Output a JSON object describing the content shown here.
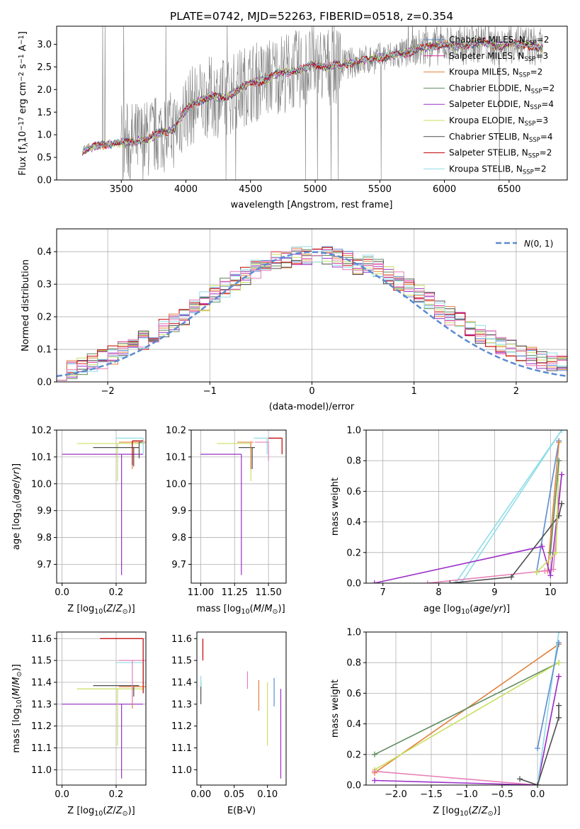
{
  "figure_title": "PLATE=0742, MJD=52263, FIBERID=0518, z=0.354",
  "colors": {
    "miles_chabrier": "#5b8bd0",
    "miles_salpeter": "#d62790",
    "miles_kroupa": "#e0803a",
    "elodie_chabrier": "#5f8a5f",
    "elodie_salpeter": "#9b30c8",
    "elodie_kroupa": "#c8e060",
    "stelib_chabrier": "#4d4d4d",
    "stelib_salpeter": "#c00000",
    "stelib_kroupa": "#90dde8",
    "data": "#808080",
    "gauss": "#5b8bd0",
    "pink": "#e67fb8"
  },
  "chart_data": [
    {
      "id": "spectrum",
      "type": "line",
      "title": "PLATE=0742, MJD=52263, FIBERID=0518, z=0.354",
      "xlabel": "wavelength [Angstrom, rest frame]",
      "ylabel_html": "Flux [fλ10⁻¹⁷ erg cm⁻² s⁻¹ A⁻¹]",
      "xlim": [
        3000,
        6950
      ],
      "ylim": [
        0,
        3.4
      ],
      "xticks": [
        3500,
        4000,
        4500,
        5000,
        5500,
        6000,
        6500
      ],
      "yticks": [
        0.0,
        0.5,
        1.0,
        1.5,
        2.0,
        2.5,
        3.0
      ],
      "legend_position": "right",
      "legend": [
        {
          "name": "Chabrier MILES",
          "nssp": "2",
          "color": "#5b8bd0"
        },
        {
          "name": "Salpeter MILES",
          "nssp": "3",
          "color": "#d62790"
        },
        {
          "name": "Kroupa MILES",
          "nssp": "2",
          "color": "#e0803a"
        },
        {
          "name": "Chabrier ELODIE",
          "nssp": "2",
          "color": "#5f8a5f"
        },
        {
          "name": "Salpeter ELODIE",
          "nssp": "4",
          "color": "#9b30c8"
        },
        {
          "name": "Kroupa ELODIE",
          "nssp": "3",
          "color": "#c8e060"
        },
        {
          "name": "Chabrier STELIB",
          "nssp": "4",
          "color": "#4d4d4d"
        },
        {
          "name": "Salpeter STELIB",
          "nssp": "2",
          "color": "#c00000"
        },
        {
          "name": "Kroupa STELIB",
          "nssp": "2",
          "color": "#90dde8"
        }
      ],
      "continuum": [
        [
          3200,
          0.65
        ],
        [
          3300,
          0.75
        ],
        [
          3400,
          0.8
        ],
        [
          3500,
          0.82
        ],
        [
          3600,
          0.85
        ],
        [
          3700,
          0.9
        ],
        [
          3800,
          1.05
        ],
        [
          3900,
          1.1
        ],
        [
          4000,
          1.55
        ],
        [
          4100,
          1.75
        ],
        [
          4200,
          1.85
        ],
        [
          4300,
          1.8
        ],
        [
          4400,
          2.0
        ],
        [
          4500,
          2.15
        ],
        [
          4600,
          2.2
        ],
        [
          4700,
          2.35
        ],
        [
          4800,
          2.4
        ],
        [
          4900,
          2.45
        ],
        [
          5000,
          2.55
        ],
        [
          5100,
          2.5
        ],
        [
          5200,
          2.55
        ],
        [
          5300,
          2.6
        ],
        [
          5400,
          2.65
        ],
        [
          5500,
          2.7
        ],
        [
          5600,
          2.75
        ],
        [
          5700,
          2.8
        ],
        [
          5800,
          2.9
        ],
        [
          5900,
          2.95
        ],
        [
          6000,
          3.0
        ],
        [
          6100,
          2.95
        ],
        [
          6200,
          3.0
        ],
        [
          6300,
          3.05
        ],
        [
          6400,
          2.95
        ],
        [
          6500,
          3.0
        ],
        [
          6600,
          3.0
        ],
        [
          6700,
          2.95
        ],
        [
          6750,
          2.9
        ]
      ]
    },
    {
      "id": "residuals",
      "type": "line",
      "xlabel": "(data-model)/error",
      "ylabel": "Normed distribution",
      "xlim": [
        -2.5,
        2.5
      ],
      "ylim": [
        0,
        0.47
      ],
      "xticks": [
        -2,
        -1,
        0,
        1,
        2
      ],
      "yticks": [
        0.0,
        0.1,
        0.2,
        0.3,
        0.4
      ],
      "grid": true,
      "legend_position": "top-right",
      "legend": [
        {
          "name": "𝒩(0, 1)",
          "color": "#5b8bd0",
          "style": "dashed"
        }
      ],
      "gaussian": {
        "mean": 0,
        "sigma": 1
      }
    },
    {
      "id": "age_vs_Z",
      "type": "scatter",
      "xlabel_html": "Z [log₁₀(Z/Z⊙)]",
      "ylabel_html": "age  [log₁₀(age/yr)]",
      "xlim": [
        -0.02,
        0.31
      ],
      "ylim": [
        9.63,
        10.2
      ],
      "xticks": [
        0.0,
        0.2
      ],
      "yticks": [
        9.7,
        9.8,
        9.9,
        10.0,
        10.1,
        10.2
      ],
      "grid": true,
      "points": [
        {
          "x": 0.22,
          "y": 10.11,
          "xerr": [
            0.22,
            0.08
          ],
          "yerr": [
            0.45,
            0
          ],
          "color": "#9b30c8"
        },
        {
          "x": 0.205,
          "y": 10.15,
          "xerr": [
            0.15,
            0.1
          ],
          "yerr": [
            0.14,
            0
          ],
          "color": "#c8e060"
        },
        {
          "x": 0.265,
          "y": 10.135,
          "xerr": [
            0.15,
            0.02
          ],
          "yerr": [
            0.07,
            0
          ],
          "color": "#4d4d4d"
        },
        {
          "x": 0.26,
          "y": 10.155,
          "xerr": [
            0.05,
            0.05
          ],
          "yerr": [
            0.1,
            0
          ],
          "color": "#e0803a"
        },
        {
          "x": 0.3,
          "y": 10.17,
          "xerr": [
            0.1,
            0
          ],
          "yerr": [
            0.06,
            0
          ],
          "color": "#90dde8"
        },
        {
          "x": 0.285,
          "y": 10.155,
          "xerr": [
            0.0,
            0.01
          ],
          "yerr": [
            0.06,
            0
          ],
          "color": "#4d4d4d"
        },
        {
          "x": 0.26,
          "y": 10.16,
          "xerr": [
            0.0,
            0.04
          ],
          "yerr": [
            0.09,
            0
          ],
          "color": "#c00000"
        }
      ]
    },
    {
      "id": "age_vs_mass",
      "type": "scatter",
      "xlabel_html": "mass [log₁₀(M/M⊙)]",
      "xlim": [
        10.93,
        11.63
      ],
      "ylim": [
        9.63,
        10.2
      ],
      "xticks": [
        11.0,
        11.25,
        11.5
      ],
      "yticks": [
        9.7,
        9.8,
        9.9,
        10.0,
        10.1,
        10.2
      ],
      "grid": true,
      "points": [
        {
          "x": 11.3,
          "y": 10.11,
          "xerr": [
            0.3,
            0
          ],
          "yerr": [
            0.45,
            0
          ],
          "color": "#9b30c8"
        },
        {
          "x": 11.37,
          "y": 10.15,
          "xerr": [
            0.25,
            0
          ],
          "yerr": [
            0.14,
            0
          ],
          "color": "#c8e060"
        },
        {
          "x": 11.38,
          "y": 10.135,
          "xerr": [
            0.1,
            0.02
          ],
          "yerr": [
            0.08,
            0
          ],
          "color": "#4d4d4d"
        },
        {
          "x": 11.37,
          "y": 10.155,
          "xerr": [
            0.1,
            0.02
          ],
          "yerr": [
            0.1,
            0
          ],
          "color": "#e0803a"
        },
        {
          "x": 11.49,
          "y": 10.17,
          "xerr": [
            0.1,
            0.05
          ],
          "yerr": [
            0.06,
            0
          ],
          "color": "#90dde8"
        },
        {
          "x": 11.5,
          "y": 10.155,
          "xerr": [
            0.1,
            0
          ],
          "yerr": [
            0.07,
            0
          ],
          "color": "#e67fb8"
        },
        {
          "x": 11.6,
          "y": 10.17,
          "xerr": [
            0.1,
            0
          ],
          "yerr": [
            0.06,
            0
          ],
          "color": "#c00000"
        }
      ]
    },
    {
      "id": "mass_weight_vs_age",
      "type": "line",
      "xlabel_html": "age  [log₁₀(age/yr)]",
      "ylabel": "mass weight",
      "xlim": [
        6.7,
        10.3
      ],
      "ylim": [
        0,
        1.0
      ],
      "xticks": [
        7,
        8,
        9,
        10
      ],
      "yticks": [
        0.0,
        0.2,
        0.4,
        0.6,
        0.8,
        1.0
      ],
      "grid": true,
      "series": [
        {
          "color": "#90dde8",
          "x": [
            8.3,
            10.2
          ],
          "y": [
            0,
            1.0
          ]
        },
        {
          "color": "#90dde8",
          "x": [
            8.4,
            10.2
          ],
          "y": [
            0,
            1.0
          ]
        },
        {
          "color": "#5b8bd0",
          "x": [
            9.75,
            10.15
          ],
          "y": [
            0.07,
            0.93
          ]
        },
        {
          "color": "#e0803a",
          "x": [
            9.95,
            10.15
          ],
          "y": [
            0.08,
            0.92
          ]
        },
        {
          "color": "#e67fb8",
          "x": [
            7.8,
            9.9,
            10.05,
            10.2
          ],
          "y": [
            0,
            0.08,
            0.09,
            0.71
          ]
        },
        {
          "color": "#9b30c8",
          "x": [
            6.85,
            9.85,
            10.0,
            10.2
          ],
          "y": [
            0,
            0.24,
            0.05,
            0.71
          ]
        },
        {
          "color": "#4d4d4d",
          "x": [
            8.2,
            9.3,
            10.15,
            10.2
          ],
          "y": [
            0,
            0.04,
            0.44,
            0.52
          ]
        },
        {
          "color": "#c8e060",
          "x": [
            9.75,
            10.1,
            10.15
          ],
          "y": [
            0.07,
            0.2,
            0.8
          ]
        },
        {
          "color": "#5f8a5f",
          "x": [
            10.0,
            10.15
          ],
          "y": [
            0.2,
            0.8
          ]
        }
      ]
    },
    {
      "id": "mass_vs_Z",
      "type": "scatter",
      "xlabel_html": "Z [log₁₀(Z/Z⊙)]",
      "ylabel_html": "mass [log₁₀(M/M⊙)]",
      "xlim": [
        -0.02,
        0.31
      ],
      "ylim": [
        10.93,
        11.63
      ],
      "xticks": [
        0.0,
        0.2
      ],
      "yticks": [
        11.0,
        11.1,
        11.2,
        11.3,
        11.4,
        11.5,
        11.6
      ],
      "grid": true,
      "points": [
        {
          "x": 0.22,
          "y": 11.3,
          "xerr": [
            0.22,
            0.08
          ],
          "yerr": [
            0.34,
            0
          ],
          "color": "#9b30c8"
        },
        {
          "x": 0.205,
          "y": 11.37,
          "xerr": [
            0.15,
            0.1
          ],
          "yerr": [
            0.26,
            0
          ],
          "color": "#c8e060"
        },
        {
          "x": 0.265,
          "y": 11.385,
          "xerr": [
            0.15,
            0.02
          ],
          "yerr": [
            0.05,
            0
          ],
          "color": "#4d4d4d"
        },
        {
          "x": 0.26,
          "y": 11.38,
          "xerr": [
            0.05,
            0.05
          ],
          "yerr": [
            0.1,
            0
          ],
          "color": "#e0803a"
        },
        {
          "x": 0.3,
          "y": 11.49,
          "xerr": [
            0.1,
            0
          ],
          "yerr": [
            0.1,
            0
          ],
          "color": "#90dde8"
        },
        {
          "x": 0.26,
          "y": 11.5,
          "xerr": [
            0.05,
            0.05
          ],
          "yerr": [
            0.2,
            0
          ],
          "color": "#e67fb8"
        },
        {
          "x": 0.3,
          "y": 11.6,
          "xerr": [
            0.16,
            0
          ],
          "yerr": [
            0.25,
            0
          ],
          "color": "#c00000"
        }
      ]
    },
    {
      "id": "mass_vs_EBV",
      "type": "scatter",
      "xlabel": "E(B-V)",
      "xlim": [
        -0.006,
        0.128
      ],
      "ylim": [
        10.93,
        11.63
      ],
      "xticks": [
        0.0,
        0.05,
        0.1
      ],
      "yticks": [
        11.0,
        11.1,
        11.2,
        11.3,
        11.4,
        11.5,
        11.6
      ],
      "grid": false,
      "points": [
        {
          "x": 0.003,
          "y": 11.6,
          "yerr": [
            0.1,
            0
          ],
          "color": "#c00000"
        },
        {
          "x": 0.0,
          "y": 11.4,
          "yerr": [
            0.1,
            0
          ],
          "color": "#4d4d4d"
        },
        {
          "x": 0.0,
          "y": 11.43,
          "yerr": [
            0.05,
            0
          ],
          "color": "#90dde8"
        },
        {
          "x": 0.07,
          "y": 11.45,
          "yerr": [
            0.08,
            0
          ],
          "color": "#e67fb8"
        },
        {
          "x": 0.087,
          "y": 11.41,
          "yerr": [
            0.14,
            0
          ],
          "color": "#e0803a"
        },
        {
          "x": 0.1,
          "y": 11.4,
          "yerr": [
            0.29,
            0
          ],
          "color": "#c8e060"
        },
        {
          "x": 0.11,
          "y": 11.42,
          "yerr": [
            0.13,
            0
          ],
          "color": "#5b8bd0"
        },
        {
          "x": 0.12,
          "y": 11.37,
          "yerr": [
            0.41,
            0
          ],
          "color": "#9b30c8"
        }
      ]
    },
    {
      "id": "mass_weight_vs_Z",
      "type": "line",
      "xlabel_html": "Z [log₁₀(Z/Z⊙)]",
      "ylabel": "mass weight",
      "xlim": [
        -2.42,
        0.42
      ],
      "ylim": [
        0,
        1.0
      ],
      "xticks": [
        -2.0,
        -1.5,
        -1.0,
        -0.5,
        0.0
      ],
      "yticks": [
        0.0,
        0.2,
        0.4,
        0.6,
        0.8,
        1.0
      ],
      "grid": true,
      "series": [
        {
          "color": "#e0803a",
          "x": [
            -2.3,
            0.3
          ],
          "y": [
            0.08,
            0.92
          ]
        },
        {
          "color": "#5f8a5f",
          "x": [
            -2.3,
            0.3
          ],
          "y": [
            0.2,
            0.8
          ]
        },
        {
          "color": "#c8e060",
          "x": [
            -2.3,
            0.3
          ],
          "y": [
            0.1,
            0.8
          ]
        },
        {
          "color": "#e67fb8",
          "x": [
            -2.3,
            0.0,
            0.3
          ],
          "y": [
            0.09,
            0.0,
            0.71
          ]
        },
        {
          "color": "#9b30c8",
          "x": [
            -2.3,
            0.0,
            0.3
          ],
          "y": [
            0.03,
            0.0,
            0.71
          ]
        },
        {
          "color": "#90dde8",
          "x": [
            0.0,
            0.3
          ],
          "y": [
            0.0,
            1.0
          ]
        },
        {
          "color": "#5b8bd0",
          "x": [
            0.0,
            0.3
          ],
          "y": [
            0.24,
            0.93
          ]
        },
        {
          "color": "#4d4d4d",
          "x": [
            -0.25,
            0.0,
            0.3,
            0.3
          ],
          "y": [
            0.04,
            0.0,
            0.44,
            0.52
          ]
        }
      ]
    }
  ]
}
